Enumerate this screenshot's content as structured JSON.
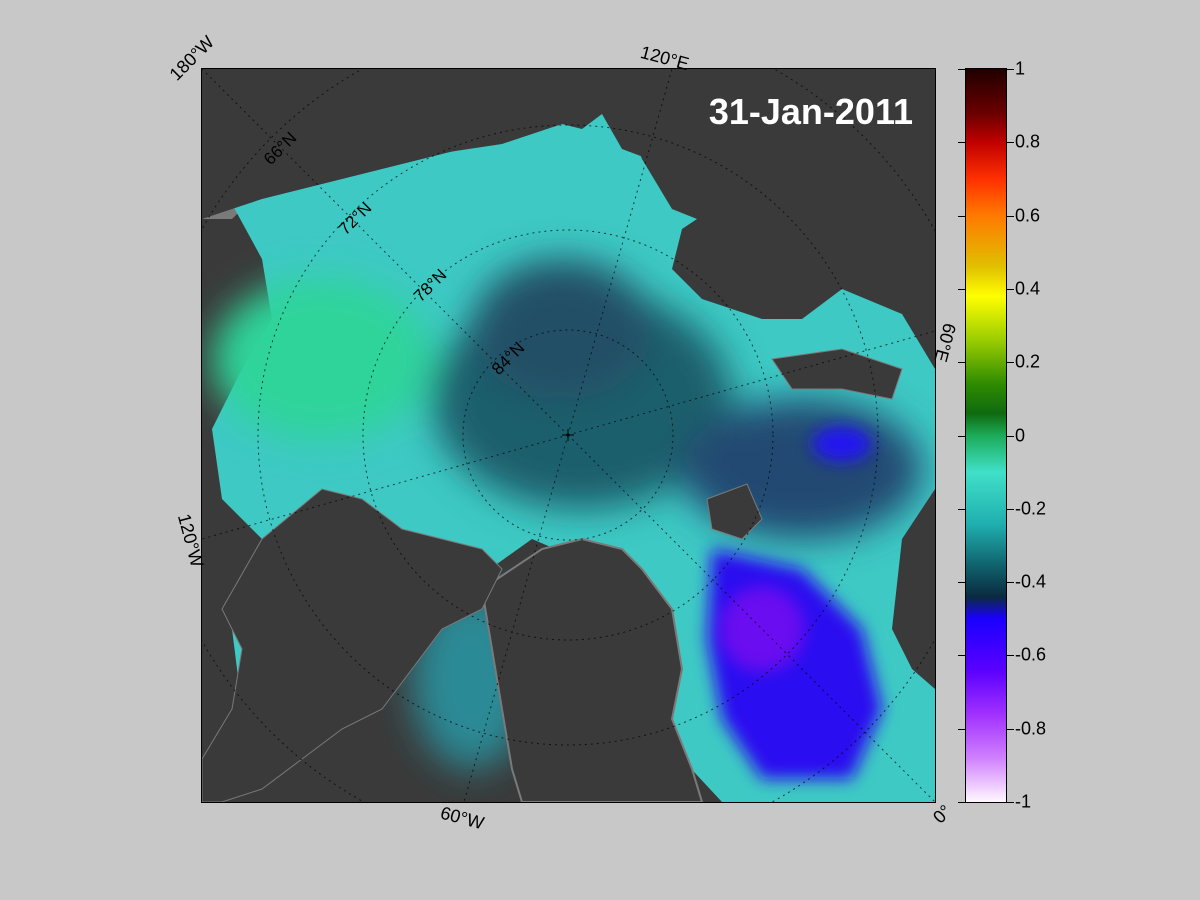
{
  "map": {
    "date_label": "31-Jan-2011",
    "colors": {
      "land": "#3a3a3a",
      "coast": "#7a7a7a",
      "ice_thin": "#45dcd4",
      "ice_mid": "#2aa6a8",
      "ice_thick": "#1f5e6e",
      "blue_low": "#2410e8"
    }
  },
  "longitude_labels": {
    "lon_180w": "180°W",
    "lon_120e": "120°E",
    "lon_60e": "60°E",
    "lon_120w": "120°W",
    "lon_60w": "60°W",
    "lon_0": "0°"
  },
  "latitude_labels": {
    "lat_66": "66°N",
    "lat_72": "72°N",
    "lat_78": "78°N",
    "lat_84": "84°N"
  },
  "colorbar": {
    "min": -1,
    "max": 1,
    "tick_labels": [
      "1",
      "0.8",
      "0.6",
      "0.4",
      "0.2",
      "0",
      "-0.2",
      "-0.4",
      "-0.6",
      "-0.8",
      "-1"
    ]
  }
}
